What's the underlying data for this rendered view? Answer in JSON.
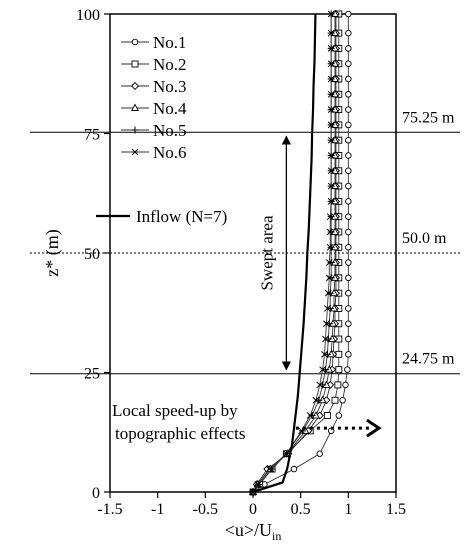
{
  "chart_data": {
    "type": "line",
    "xlabel": "<u>/U",
    "xlabel_sub": "in",
    "ylabel": "z* (m)",
    "xlim": [
      -1.5,
      1.5
    ],
    "ylim": [
      0,
      100
    ],
    "xticks": [
      -1.5,
      -1,
      -0.5,
      0,
      0.5,
      1,
      1.5
    ],
    "xtick_labels": [
      "-1.5",
      "-1",
      "-0.5",
      "0",
      "0.5",
      "1",
      "1.5"
    ],
    "yticks": [
      0,
      25,
      50,
      75,
      100
    ],
    "ytick_labels": [
      "0",
      "25",
      "50",
      "75",
      "100"
    ],
    "grid": false,
    "legend_position": "top-left",
    "z": [
      0,
      1.6,
      4.8,
      8,
      12.8,
      16,
      19.2,
      22.4,
      25.6,
      28.8,
      32,
      35.2,
      38.4,
      41.6,
      44.8,
      48,
      51.2,
      54.4,
      57.6,
      60.8,
      64,
      67.2,
      70.4,
      73.6,
      76.8,
      80,
      83.2,
      86.4,
      89.6,
      92.8,
      96,
      100
    ],
    "series": [
      {
        "name": "No.1",
        "marker": "circle",
        "values": [
          0,
          0.12,
          0.43,
          0.7,
          0.82,
          0.9,
          0.94,
          0.97,
          0.99,
          1.0,
          1.0,
          1.0,
          1.0,
          1.0,
          1.0,
          1.0,
          1.0,
          1.0,
          1.0,
          1.0,
          1.0,
          1.0,
          1.0,
          1.0,
          1.0,
          1.0,
          1.0,
          1.0,
          1.0,
          1.0,
          1.0,
          1.0
        ]
      },
      {
        "name": "No.2",
        "marker": "square",
        "values": [
          0,
          0.07,
          0.2,
          0.35,
          0.6,
          0.78,
          0.86,
          0.89,
          0.9,
          0.9,
          0.9,
          0.9,
          0.9,
          0.9,
          0.9,
          0.9,
          0.9,
          0.9,
          0.9,
          0.9,
          0.9,
          0.9,
          0.9,
          0.9,
          0.9,
          0.9,
          0.9,
          0.9,
          0.9,
          0.9,
          0.9,
          0.9
        ]
      },
      {
        "name": "No.3",
        "marker": "diamond",
        "values": [
          0,
          0.04,
          0.15,
          0.37,
          0.58,
          0.7,
          0.77,
          0.81,
          0.83,
          0.84,
          0.85,
          0.86,
          0.86,
          0.87,
          0.87,
          0.87,
          0.87,
          0.87,
          0.87,
          0.87,
          0.87,
          0.87,
          0.87,
          0.87,
          0.87,
          0.87,
          0.87,
          0.87,
          0.87,
          0.87,
          0.87,
          0.87
        ]
      },
      {
        "name": "No.4",
        "marker": "triangle",
        "values": [
          0,
          0.05,
          0.18,
          0.36,
          0.55,
          0.66,
          0.73,
          0.77,
          0.8,
          0.82,
          0.83,
          0.84,
          0.85,
          0.85,
          0.86,
          0.86,
          0.86,
          0.86,
          0.86,
          0.86,
          0.86,
          0.86,
          0.86,
          0.86,
          0.86,
          0.86,
          0.86,
          0.86,
          0.86,
          0.86,
          0.86,
          0.86
        ]
      },
      {
        "name": "No.5",
        "marker": "plus",
        "values": [
          0,
          0.06,
          0.2,
          0.35,
          0.52,
          0.62,
          0.69,
          0.73,
          0.76,
          0.78,
          0.79,
          0.8,
          0.81,
          0.81,
          0.82,
          0.82,
          0.82,
          0.82,
          0.82,
          0.82,
          0.82,
          0.82,
          0.82,
          0.82,
          0.82,
          0.82,
          0.82,
          0.82,
          0.82,
          0.82,
          0.82,
          0.82
        ]
      },
      {
        "name": "No.6",
        "marker": "cross",
        "values": [
          0,
          0.05,
          0.17,
          0.35,
          0.51,
          0.6,
          0.66,
          0.7,
          0.73,
          0.75,
          0.76,
          0.77,
          0.78,
          0.79,
          0.8,
          0.8,
          0.81,
          0.81,
          0.81,
          0.82,
          0.82,
          0.82,
          0.82,
          0.82,
          0.82,
          0.82,
          0.82,
          0.82,
          0.82,
          0.82,
          0.82,
          0.82
        ]
      }
    ],
    "inflow": {
      "name": "Inflow (N=7)",
      "z": [
        0,
        2,
        5,
        10,
        15,
        20,
        25,
        30,
        35,
        40,
        45,
        50,
        55,
        60,
        65,
        70,
        75,
        80,
        85,
        90,
        95,
        100
      ],
      "values": [
        0,
        0.31,
        0.36,
        0.41,
        0.44,
        0.47,
        0.49,
        0.51,
        0.53,
        0.545,
        0.56,
        0.57,
        0.585,
        0.595,
        0.605,
        0.615,
        0.62,
        0.63,
        0.635,
        0.645,
        0.65,
        0.655
      ]
    },
    "reference_lines": [
      {
        "z": 75.25,
        "style": "solid",
        "label": "75.25 m"
      },
      {
        "z": 50.0,
        "style": "dotted",
        "label": "50.0 m"
      },
      {
        "z": 24.75,
        "style": "solid",
        "label": "24.75 m"
      }
    ],
    "annotations": {
      "swept_area": {
        "label": "Swept area",
        "x": 0.35,
        "z_from": 24.75,
        "z_to": 75.25
      },
      "speedup": {
        "line1": "Local speed-up by",
        "line2": "topographic effects",
        "arrow_z": 14,
        "arrow_x_from": 0.45,
        "arrow_x_to": 1.3
      }
    }
  }
}
